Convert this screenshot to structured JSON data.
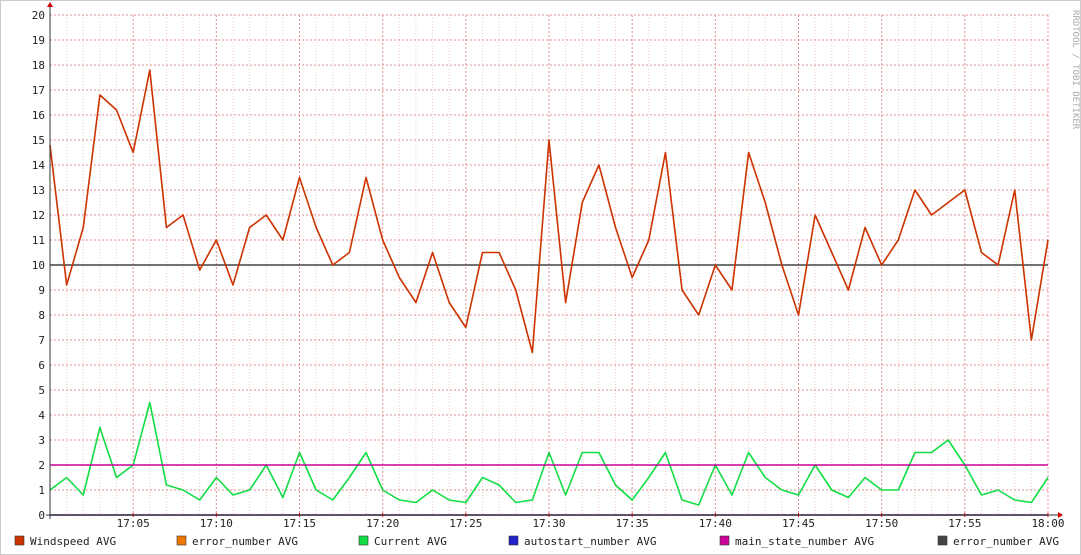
{
  "chart_data": {
    "type": "line",
    "watermark": "RRDTOOL / TOBI OETIKER",
    "x": [
      "17:00",
      "17:01",
      "17:02",
      "17:03",
      "17:04",
      "17:05",
      "17:06",
      "17:07",
      "17:08",
      "17:09",
      "17:10",
      "17:11",
      "17:12",
      "17:13",
      "17:14",
      "17:15",
      "17:16",
      "17:17",
      "17:18",
      "17:19",
      "17:20",
      "17:21",
      "17:22",
      "17:23",
      "17:24",
      "17:25",
      "17:26",
      "17:27",
      "17:28",
      "17:29",
      "17:30",
      "17:31",
      "17:32",
      "17:33",
      "17:34",
      "17:35",
      "17:36",
      "17:37",
      "17:38",
      "17:39",
      "17:40",
      "17:41",
      "17:42",
      "17:43",
      "17:44",
      "17:45",
      "17:46",
      "17:47",
      "17:48",
      "17:49",
      "17:50",
      "17:51",
      "17:52",
      "17:53",
      "17:54",
      "17:55",
      "17:56",
      "17:57",
      "17:58",
      "17:59",
      "18:00"
    ],
    "ylim": [
      0,
      20
    ],
    "yticks": [
      0,
      1,
      2,
      3,
      4,
      5,
      6,
      7,
      8,
      9,
      10,
      11,
      12,
      13,
      14,
      15,
      16,
      17,
      18,
      19,
      20
    ],
    "grid": true,
    "series": [
      {
        "name": "error_number AVG",
        "color": "#ee7700",
        "values": [
          0,
          0,
          0,
          0,
          0,
          0,
          0,
          0,
          0,
          0,
          0,
          0,
          0,
          0,
          0,
          0,
          0,
          0,
          0,
          0,
          0,
          0,
          0,
          0,
          0,
          0,
          0,
          0,
          0,
          0,
          0,
          0,
          0,
          0,
          0,
          0,
          0,
          0,
          0,
          0,
          0,
          0,
          0,
          0,
          0,
          0,
          0,
          0,
          0,
          0,
          0,
          0,
          0,
          0,
          0,
          0,
          0,
          0,
          0,
          0,
          0
        ]
      },
      {
        "name": "autostart_number AVG",
        "color": "#2222cc",
        "values": [
          0,
          0,
          0,
          0,
          0,
          0,
          0,
          0,
          0,
          0,
          0,
          0,
          0,
          0,
          0,
          0,
          0,
          0,
          0,
          0,
          0,
          0,
          0,
          0,
          0,
          0,
          0,
          0,
          0,
          0,
          0,
          0,
          0,
          0,
          0,
          0,
          0,
          0,
          0,
          0,
          0,
          0,
          0,
          0,
          0,
          0,
          0,
          0,
          0,
          0,
          0,
          0,
          0,
          0,
          0,
          0,
          0,
          0,
          0,
          0,
          0
        ]
      },
      {
        "name": "Current AVG",
        "color": "#11dd44",
        "values": [
          1.0,
          1.5,
          0.8,
          3.5,
          1.5,
          2.0,
          4.5,
          1.2,
          1.0,
          0.6,
          1.5,
          0.8,
          1.0,
          2.0,
          0.7,
          2.5,
          1.0,
          0.6,
          1.5,
          2.5,
          1.0,
          0.6,
          0.5,
          1.0,
          0.6,
          0.5,
          1.5,
          1.2,
          0.5,
          0.6,
          2.5,
          0.8,
          2.5,
          2.5,
          1.2,
          0.6,
          1.5,
          2.5,
          0.6,
          0.4,
          2.0,
          0.8,
          2.5,
          1.5,
          1.0,
          0.8,
          2.0,
          1.0,
          0.7,
          1.5,
          1.0,
          1.0,
          2.5,
          2.5,
          3.0,
          2.0,
          0.8,
          1.0,
          0.6,
          0.5,
          1.5
        ]
      },
      {
        "name": "main_state_number AVG",
        "color": "#cc0099",
        "values": [
          2,
          2,
          2,
          2,
          2,
          2,
          2,
          2,
          2,
          2,
          2,
          2,
          2,
          2,
          2,
          2,
          2,
          2,
          2,
          2,
          2,
          2,
          2,
          2,
          2,
          2,
          2,
          2,
          2,
          2,
          2,
          2,
          2,
          2,
          2,
          2,
          2,
          2,
          2,
          2,
          2,
          2,
          2,
          2,
          2,
          2,
          2,
          2,
          2,
          2,
          2,
          2,
          2,
          2,
          2,
          2,
          2,
          2,
          2,
          2,
          2
        ]
      },
      {
        "name": "error_number AVG",
        "color": "#444444",
        "values": [
          10,
          10,
          10,
          10,
          10,
          10,
          10,
          10,
          10,
          10,
          10,
          10,
          10,
          10,
          10,
          10,
          10,
          10,
          10,
          10,
          10,
          10,
          10,
          10,
          10,
          10,
          10,
          10,
          10,
          10,
          10,
          10,
          10,
          10,
          10,
          10,
          10,
          10,
          10,
          10,
          10,
          10,
          10,
          10,
          10,
          10,
          10,
          10,
          10,
          10,
          10,
          10,
          10,
          10,
          10,
          10,
          10,
          10,
          10,
          10,
          10
        ]
      },
      {
        "name": "Windspeed AVG",
        "color": "#cc3300",
        "values": [
          14.8,
          9.2,
          11.5,
          16.8,
          16.2,
          14.5,
          17.8,
          11.5,
          12.0,
          9.8,
          11.0,
          9.2,
          11.5,
          12.0,
          11.0,
          13.5,
          11.5,
          10.0,
          10.5,
          13.5,
          11.0,
          9.5,
          8.5,
          10.5,
          8.5,
          7.5,
          10.5,
          10.5,
          9.0,
          6.5,
          15.0,
          8.5,
          12.5,
          14.0,
          11.5,
          9.5,
          11.0,
          14.5,
          9.0,
          8.0,
          10.0,
          9.0,
          14.5,
          12.5,
          10.0,
          8.0,
          12.0,
          10.5,
          9.0,
          11.5,
          10.0,
          11.0,
          13.0,
          12.0,
          12.5,
          13.0,
          10.5,
          10.0,
          13.0,
          7.0,
          11.0
        ]
      }
    ],
    "legend_order": [
      5,
      0,
      2,
      1,
      3,
      4
    ]
  }
}
